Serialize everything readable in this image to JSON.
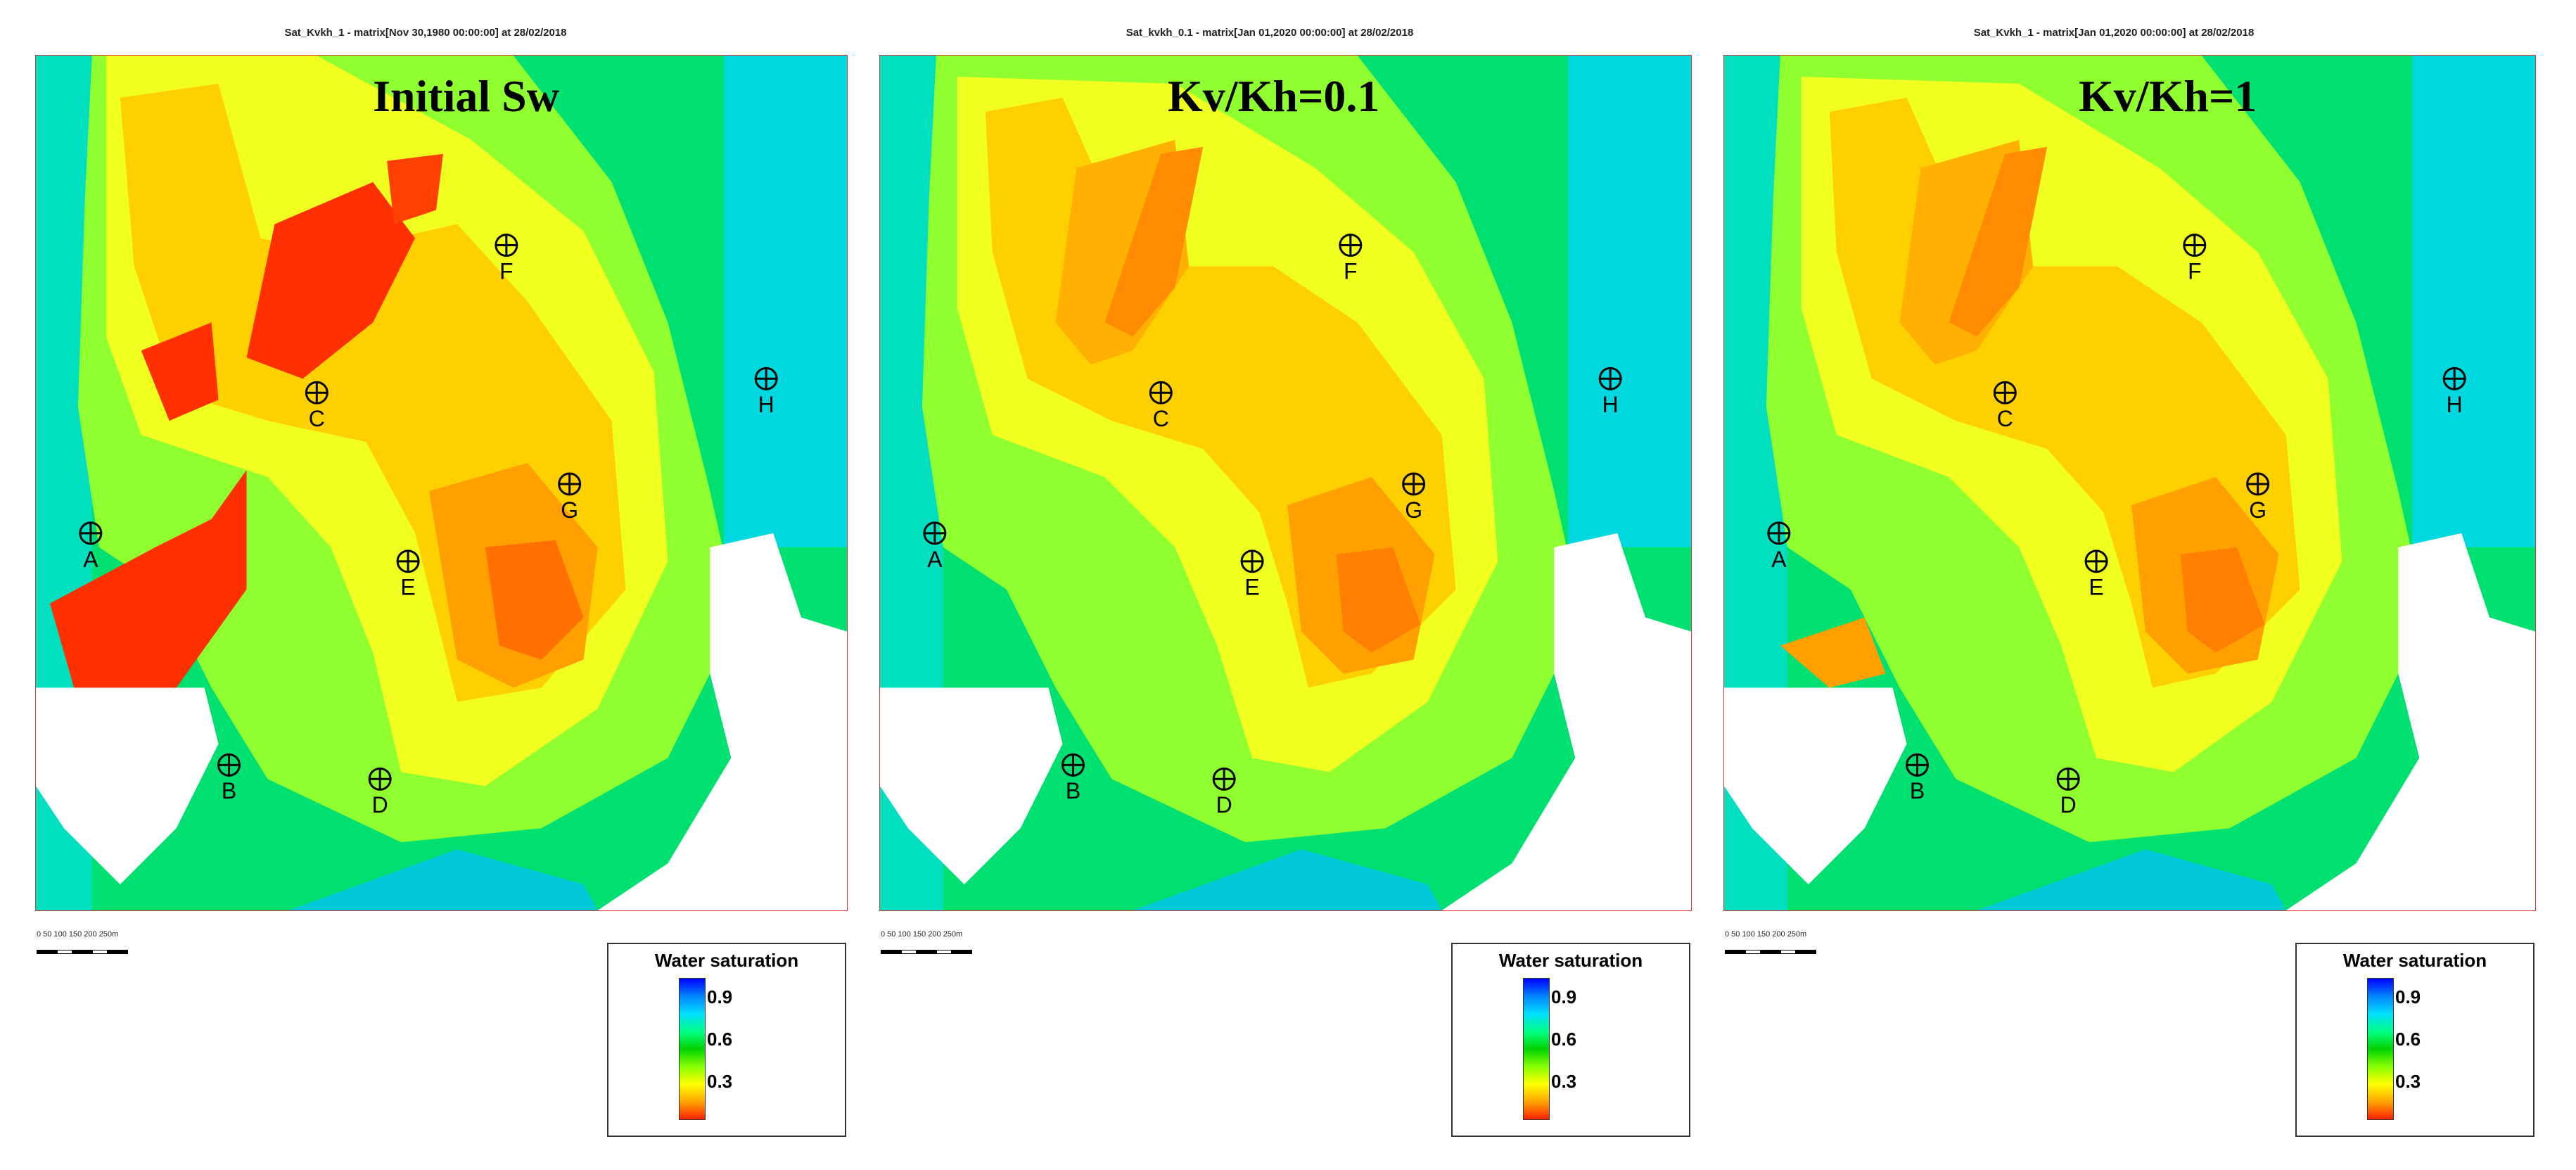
{
  "panels": [
    {
      "header": "Sat_Kvkh_1 - matrix[Nov 30,1980 00:00:00] at 28/02/2018",
      "title": "Initial Sw"
    },
    {
      "header": "Sat_kvkh_0.1 - matrix[Jan 01,2020 00:00:00] at 28/02/2018",
      "title": "Kv/Kh=0.1"
    },
    {
      "header": "Sat_Kvkh_1 - matrix[Jan 01,2020 00:00:00] at 28/02/2018",
      "title": "Kv/Kh=1"
    }
  ],
  "wells": [
    "A",
    "B",
    "C",
    "D",
    "E",
    "F",
    "G",
    "H"
  ],
  "legend": {
    "title": "Water saturation",
    "ticks": [
      "0.9",
      "0.6",
      "0.3"
    ]
  },
  "scale": {
    "text": "0  50 100 150 200 250m"
  }
}
